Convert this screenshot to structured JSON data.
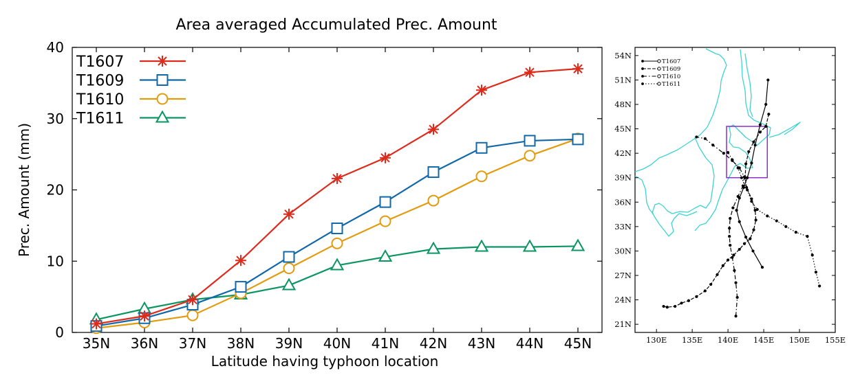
{
  "chart_data": [
    {
      "type": "line",
      "title": "Area averaged Accumulated Prec. Amount",
      "xlabel": "Latitude having typhoon location",
      "ylabel": "Prec. Amount (mm)",
      "categories": [
        "35N",
        "36N",
        "37N",
        "38N",
        "39N",
        "40N",
        "41N",
        "42N",
        "43N",
        "44N",
        "45N"
      ],
      "ylim": [
        0,
        40
      ],
      "yticks": [
        "0",
        "10",
        "20",
        "30",
        "40"
      ],
      "grid": false,
      "legend_position": "top-left",
      "series": [
        {
          "name": "T1607",
          "color": "#dd2a1b",
          "marker": "asterisk",
          "values": [
            1.2,
            2.3,
            4.6,
            10.1,
            16.6,
            21.6,
            24.5,
            28.5,
            34.0,
            36.5,
            37.0
          ]
        },
        {
          "name": "T1609",
          "color": "#1068a8",
          "marker": "square",
          "values": [
            0.9,
            2.0,
            3.9,
            6.4,
            10.6,
            14.6,
            18.3,
            22.5,
            25.9,
            26.9,
            27.1
          ]
        },
        {
          "name": "T1610",
          "color": "#e39b0e",
          "marker": "circle",
          "values": [
            0.6,
            1.4,
            2.4,
            5.5,
            9.0,
            12.5,
            15.6,
            18.5,
            21.9,
            24.8,
            27.2
          ]
        },
        {
          "name": "T1611",
          "color": "#0a9563",
          "marker": "triangle",
          "values": [
            1.8,
            3.3,
            4.6,
            5.3,
            6.6,
            9.4,
            10.6,
            11.7,
            12.0,
            12.0,
            12.1
          ]
        }
      ]
    },
    {
      "type": "map",
      "xlabels": [
        "130E",
        "135E",
        "140E",
        "145E",
        "150E",
        "155E"
      ],
      "ylabels": [
        "54N",
        "51N",
        "48N",
        "45N",
        "42N",
        "39N",
        "36N",
        "33N",
        "30N",
        "27N",
        "24N",
        "21N"
      ],
      "xlim": [
        127,
        155
      ],
      "ylim": [
        20,
        55
      ],
      "legend_position": "top-left",
      "box": {
        "lon": [
          139.8,
          145.5
        ],
        "lat": [
          39,
          45.3
        ],
        "color": "#8b2fc9"
      },
      "coast_color": "#3cd3d3",
      "tracks": [
        {
          "name": "T1607",
          "style": "solid",
          "points": [
            [
              144.8,
              28
            ],
            [
              143.5,
              30
            ],
            [
              142.5,
              31.7
            ],
            [
              141.6,
              33.6
            ],
            [
              141.2,
              35
            ],
            [
              141.6,
              36.5
            ],
            [
              142.2,
              37.8
            ],
            [
              142.7,
              39
            ],
            [
              143.3,
              40.8
            ],
            [
              143.8,
              43
            ],
            [
              144.5,
              45.5
            ],
            [
              145.3,
              48
            ],
            [
              145.6,
              51
            ]
          ]
        },
        {
          "name": "T1609",
          "style": "dashed",
          "points": [
            [
              131,
              23.2
            ],
            [
              131.5,
              23.1
            ],
            [
              132.6,
              23.2
            ],
            [
              133.5,
              23.6
            ],
            [
              134.5,
              23.9
            ],
            [
              135.6,
              24.4
            ],
            [
              136.8,
              25.1
            ],
            [
              137.6,
              25.9
            ],
            [
              138.5,
              27.1
            ],
            [
              139.3,
              28.2
            ],
            [
              140,
              28.9
            ],
            [
              140.8,
              29.5
            ],
            [
              141.6,
              30.2
            ],
            [
              142.3,
              30.9
            ],
            [
              143.1,
              31.5
            ],
            [
              143.6,
              32.6
            ],
            [
              143.9,
              33.8
            ],
            [
              143.8,
              35
            ],
            [
              143.3,
              36.4
            ],
            [
              142.6,
              37.8
            ],
            [
              142.4,
              39
            ],
            [
              142.5,
              40.7
            ],
            [
              142.9,
              42.2
            ],
            [
              143.6,
              43.4
            ],
            [
              144.5,
              44.6
            ],
            [
              145.3,
              45.3
            ],
            [
              145.7,
              46.8
            ]
          ]
        },
        {
          "name": "T1610",
          "style": "dashdot",
          "points": [
            [
              141.1,
              22
            ],
            [
              141.3,
              24.3
            ],
            [
              141.1,
              26.1
            ],
            [
              140.9,
              27.6
            ],
            [
              140.6,
              29.2
            ],
            [
              140.3,
              30.7
            ],
            [
              140.2,
              31.8
            ],
            [
              140.2,
              32.8
            ],
            [
              140.3,
              34
            ],
            [
              140.7,
              35.3
            ],
            [
              141.4,
              36.7
            ],
            [
              142.1,
              38
            ],
            [
              142.3,
              39.1
            ],
            [
              141.6,
              40.2
            ],
            [
              140.6,
              41.1
            ],
            [
              139.4,
              42
            ],
            [
              137.9,
              43
            ],
            [
              136.8,
              43.8
            ],
            [
              135.6,
              44
            ]
          ]
        },
        {
          "name": "T1611",
          "style": "dotted",
          "points": [
            [
              152.8,
              25.7
            ],
            [
              152.3,
              27.4
            ],
            [
              151.8,
              29.5
            ],
            [
              151.1,
              31.8
            ],
            [
              149.5,
              32.3
            ],
            [
              148.1,
              33
            ],
            [
              146.8,
              33.7
            ],
            [
              145.5,
              34.3
            ],
            [
              144.1,
              35.1
            ],
            [
              143.3,
              36.1
            ],
            [
              142.7,
              37.5
            ],
            [
              141.9,
              39
            ],
            [
              141.4,
              40.2
            ],
            [
              140.6,
              41.2
            ],
            [
              140,
              42.1
            ]
          ]
        }
      ]
    }
  ]
}
